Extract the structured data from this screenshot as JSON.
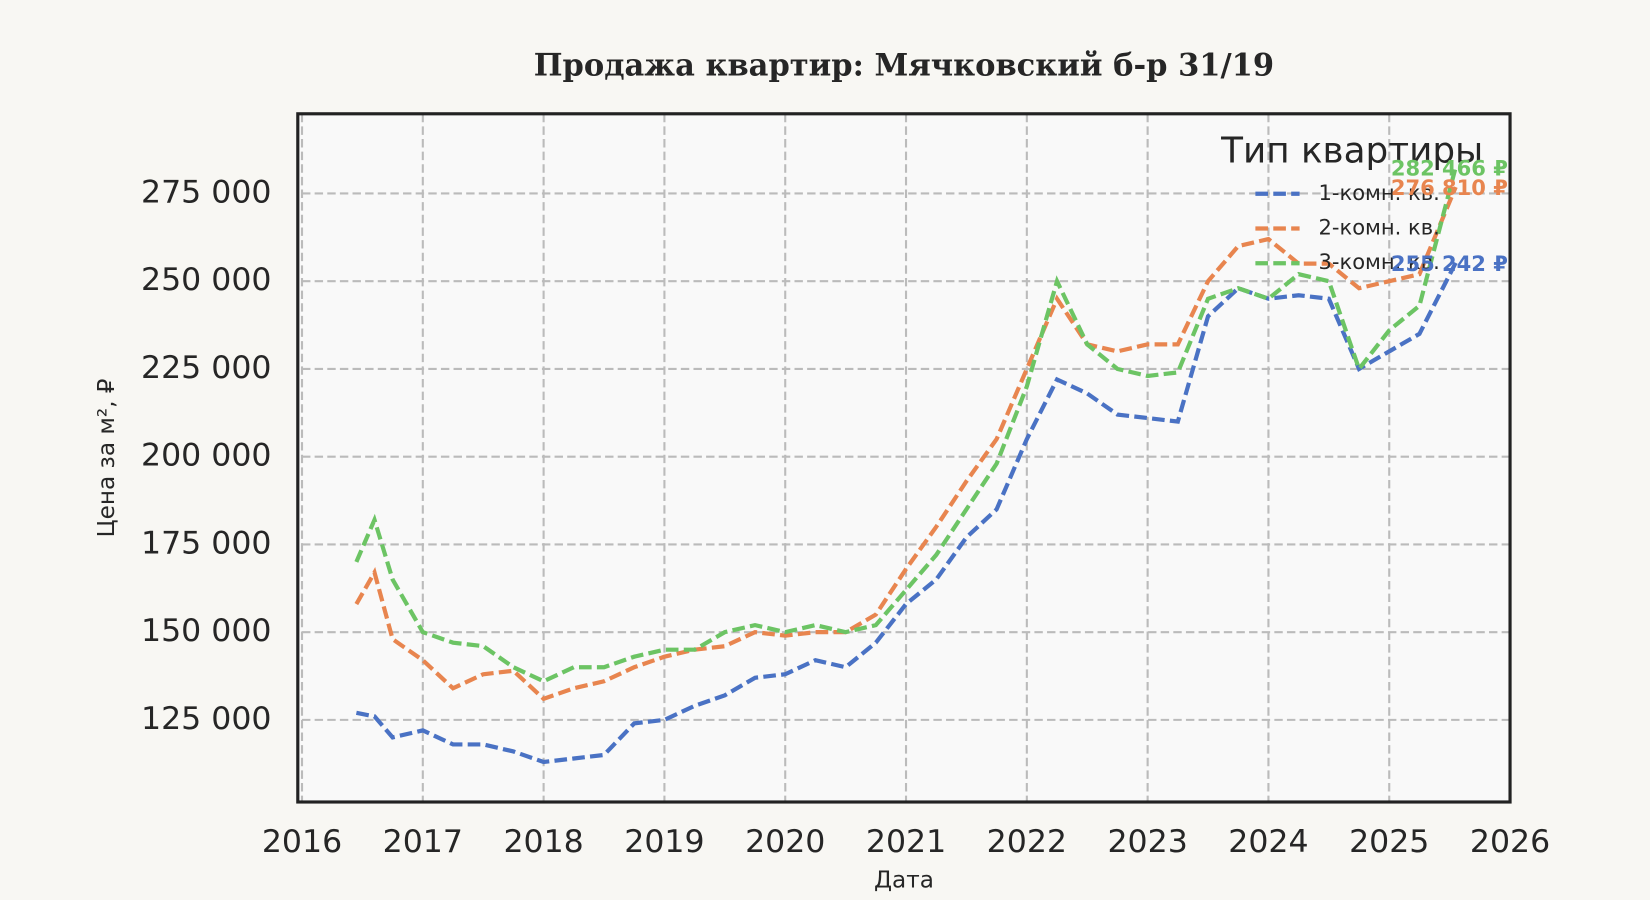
{
  "chart_data": {
    "type": "line",
    "title": "Продажа квартир: Мячковский б-р 31/19",
    "x_label": "Дата",
    "y_label": "Цена за м², ₽",
    "legend_title": "Тип квартиры",
    "legend": "upper right",
    "grid": true,
    "xlim": [
      2016,
      2026
    ],
    "xticks": [
      2016,
      2017,
      2018,
      2019,
      2020,
      2021,
      2022,
      2023,
      2024,
      2025,
      2026
    ],
    "ylim": [
      101600,
      297700
    ],
    "yticks": [
      {
        "value": 125000,
        "label": "125 000"
      },
      {
        "value": 150000,
        "label": "150 000"
      },
      {
        "value": 175000,
        "label": "175 000"
      },
      {
        "value": 200000,
        "label": "200 000"
      },
      {
        "value": 225000,
        "label": "225 000"
      },
      {
        "value": 250000,
        "label": "250 000"
      },
      {
        "value": 275000,
        "label": "275 000"
      }
    ],
    "x": [
      2016.45,
      2016.6,
      2016.75,
      2017.0,
      2017.25,
      2017.5,
      2017.75,
      2018.0,
      2018.25,
      2018.5,
      2018.75,
      2019.0,
      2019.25,
      2019.5,
      2019.75,
      2020.0,
      2020.25,
      2020.5,
      2020.75,
      2021.0,
      2021.25,
      2021.5,
      2021.75,
      2022.0,
      2022.25,
      2022.5,
      2022.75,
      2023.0,
      2023.25,
      2023.5,
      2023.75,
      2024.0,
      2024.25,
      2024.5,
      2024.75,
      2025.0,
      2025.25,
      2025.55
    ],
    "series": [
      {
        "name": "1-комн. кв.",
        "color": "#4a72c4",
        "values": [
          127000,
          126000,
          120000,
          122000,
          118000,
          118000,
          116000,
          113000,
          114000,
          115000,
          124000,
          125000,
          129000,
          132000,
          137000,
          138000,
          142000,
          140000,
          147000,
          158000,
          165000,
          177000,
          185000,
          205000,
          222000,
          218000,
          212000,
          211000,
          210000,
          240000,
          248000,
          245000,
          246000,
          245000,
          225000,
          230000,
          235000,
          255242
        ],
        "value_labels": [
          null,
          null,
          null,
          null,
          null,
          null,
          null,
          null,
          null,
          null,
          null,
          null,
          null,
          null,
          null,
          null,
          null,
          null,
          null,
          null,
          null,
          null,
          null,
          null,
          null,
          null,
          null,
          null,
          null,
          null,
          null,
          null,
          null,
          null,
          null,
          null,
          null,
          "255 242 ₽"
        ]
      },
      {
        "name": "2-комн. кв.",
        "color": "#e8854f",
        "values": [
          158000,
          167000,
          148000,
          142000,
          134000,
          138000,
          139000,
          131000,
          134000,
          136000,
          140000,
          143000,
          145000,
          146000,
          150000,
          149000,
          150000,
          150000,
          155000,
          168000,
          180000,
          193000,
          205000,
          225000,
          245000,
          232000,
          230000,
          232000,
          232000,
          250000,
          260000,
          262000,
          255000,
          255000,
          248000,
          250000,
          252000,
          276810
        ],
        "value_labels": [
          null,
          null,
          null,
          null,
          null,
          null,
          null,
          null,
          null,
          null,
          null,
          null,
          null,
          null,
          null,
          null,
          null,
          null,
          null,
          null,
          null,
          null,
          null,
          null,
          null,
          null,
          null,
          null,
          null,
          null,
          null,
          null,
          null,
          null,
          null,
          null,
          null,
          "276 810 ₽"
        ]
      },
      {
        "name": "3-комн. кв.",
        "color": "#6cc464",
        "values": [
          170000,
          182000,
          165000,
          150000,
          147000,
          146000,
          140000,
          136000,
          140000,
          140000,
          143000,
          145000,
          145000,
          150000,
          152000,
          150000,
          152000,
          150000,
          152000,
          162000,
          172000,
          185000,
          198000,
          220000,
          250000,
          232000,
          225000,
          223000,
          224000,
          245000,
          248000,
          245000,
          252000,
          250000,
          225000,
          236000,
          243000,
          282466
        ],
        "value_labels": [
          null,
          null,
          null,
          null,
          null,
          null,
          null,
          null,
          null,
          null,
          null,
          null,
          null,
          null,
          null,
          null,
          null,
          null,
          null,
          null,
          null,
          null,
          null,
          null,
          null,
          null,
          null,
          null,
          null,
          null,
          null,
          null,
          null,
          null,
          null,
          null,
          null,
          "282 466 ₽"
        ]
      }
    ]
  }
}
